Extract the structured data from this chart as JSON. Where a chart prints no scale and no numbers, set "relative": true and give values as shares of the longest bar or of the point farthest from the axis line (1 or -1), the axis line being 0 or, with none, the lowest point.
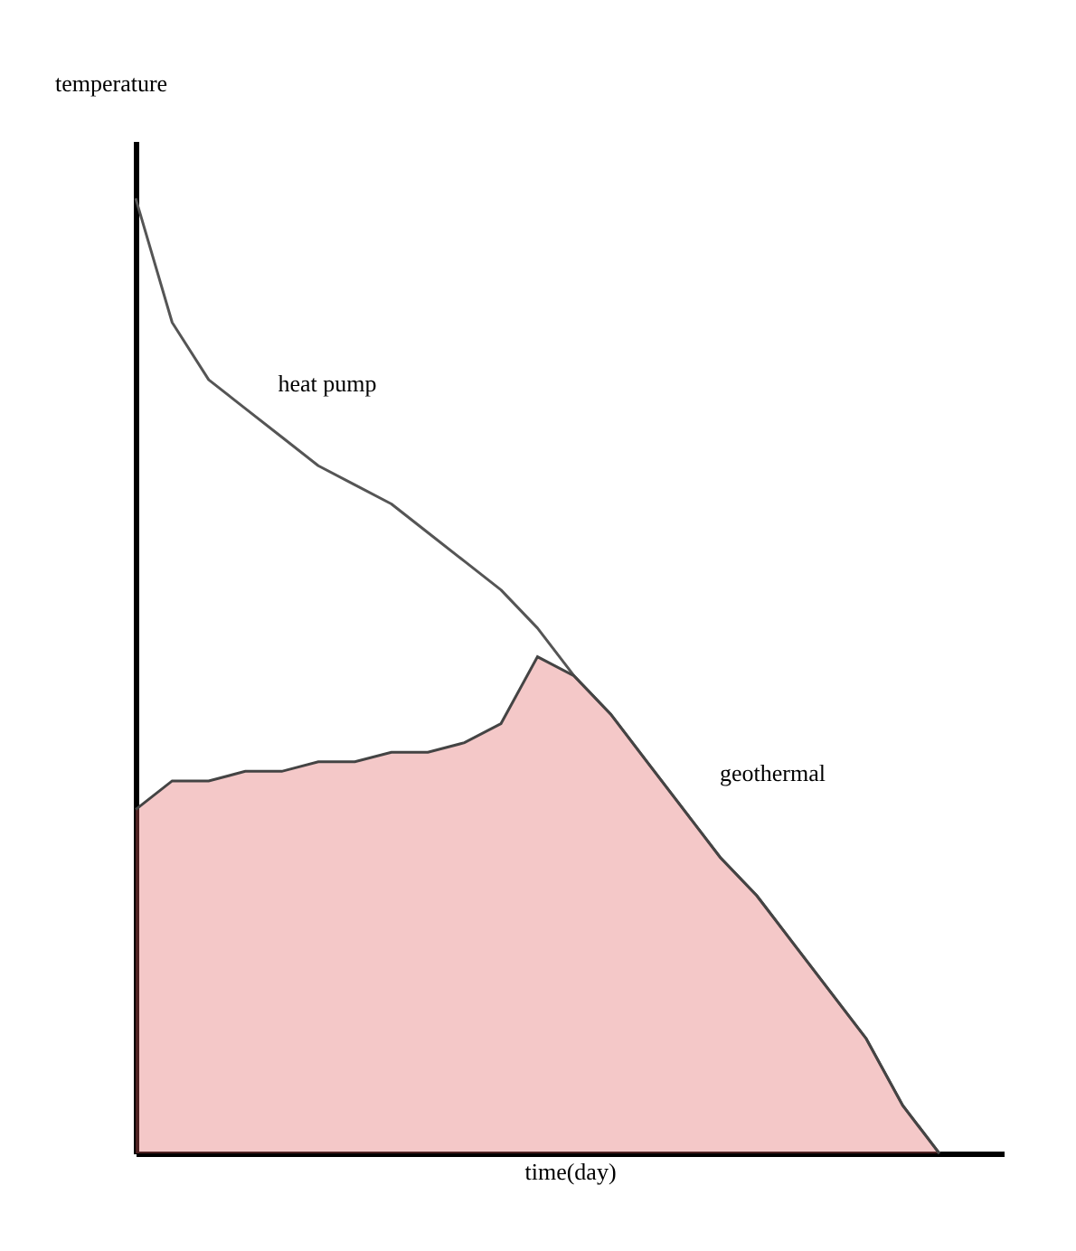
{
  "chart_data": {
    "type": "line",
    "relative": true,
    "xlabel": "time(day)",
    "ylabel": "temperature",
    "categories": [
      null,
      null,
      null,
      null,
      null,
      null,
      null,
      null,
      null,
      null,
      null,
      null,
      null,
      null,
      null,
      null,
      null,
      null,
      null,
      null,
      null,
      null,
      null
    ],
    "series": [
      {
        "name": "heat pump",
        "color": "#555555",
        "values": [
          1.0,
          0.87,
          0.81,
          0.78,
          0.75,
          0.72,
          0.7,
          0.68,
          0.65,
          0.62,
          0.59,
          0.55,
          0.5,
          0.46,
          0.41,
          0.36,
          0.31,
          0.27,
          0.22,
          0.17,
          0.12,
          0.05,
          0.0
        ]
      },
      {
        "name": "geothermal",
        "type": "area",
        "color": "#e06060",
        "values": [
          0.36,
          0.39,
          0.39,
          0.4,
          0.4,
          0.41,
          0.41,
          0.42,
          0.42,
          0.43,
          0.45,
          0.52,
          0.5,
          0.46,
          0.41,
          0.36,
          0.31,
          0.27,
          0.22,
          0.17,
          0.12,
          0.05,
          0.0
        ]
      }
    ],
    "grid": false,
    "tick_labels": false
  }
}
